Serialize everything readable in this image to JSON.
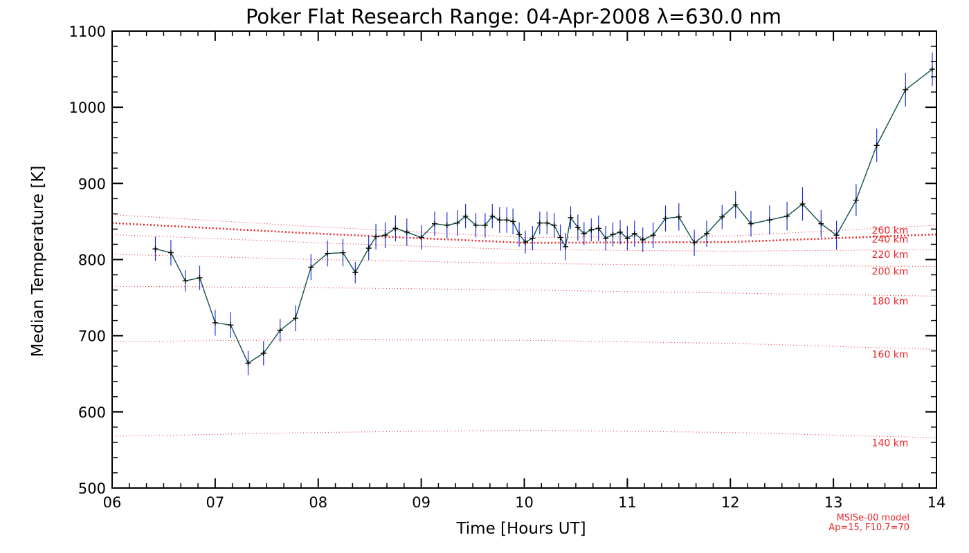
{
  "chart_data": {
    "type": "line",
    "title": "Poker Flat Research Range: 04-Apr-2008 λ=630.0 nm",
    "xlabel": "Time [Hours UT]",
    "ylabel": "Median Temperature [K]",
    "xlim": [
      6,
      14
    ],
    "ylim": [
      500,
      1100
    ],
    "xticks": [
      6,
      7,
      8,
      9,
      10,
      11,
      12,
      13,
      14
    ],
    "xtick_labels": [
      "06",
      "07",
      "08",
      "09",
      "10",
      "11",
      "12",
      "13",
      "14"
    ],
    "yticks": [
      500,
      600,
      700,
      800,
      900,
      1000,
      1100
    ],
    "ytick_labels": [
      "500",
      "600",
      "700",
      "800",
      "900",
      "1000",
      "1100"
    ],
    "grid": false,
    "series": [
      {
        "color": "#0d4f4f",
        "marker": "+",
        "errorbar_color": "#1f2fd6",
        "x": [
          6.42,
          6.57,
          6.71,
          6.85,
          7.0,
          7.15,
          7.32,
          7.47,
          7.63,
          7.78,
          7.93,
          8.09,
          8.24,
          8.36,
          8.49,
          8.56,
          8.65,
          8.75,
          8.86,
          9.0,
          9.13,
          9.25,
          9.35,
          9.43,
          9.53,
          9.62,
          9.69,
          9.76,
          9.83,
          9.89,
          9.95,
          10.01,
          10.08,
          10.15,
          10.22,
          10.29,
          10.35,
          10.4,
          10.45,
          10.52,
          10.58,
          10.65,
          10.72,
          10.79,
          10.86,
          10.93,
          11.0,
          11.07,
          11.15,
          11.25,
          11.37,
          11.5,
          11.65,
          11.77,
          11.92,
          12.05,
          12.2,
          12.38,
          12.55,
          12.7,
          12.88,
          13.03,
          13.22,
          13.42,
          13.7,
          13.96
        ],
        "y": [
          814,
          809,
          772,
          776,
          717,
          714,
          664,
          677,
          707,
          723,
          790,
          808,
          809,
          783,
          815,
          830,
          832,
          841,
          836,
          829,
          847,
          845,
          848,
          857,
          845,
          845,
          857,
          852,
          852,
          850,
          833,
          823,
          828,
          848,
          848,
          845,
          829,
          817,
          855,
          842,
          834,
          839,
          841,
          828,
          833,
          836,
          828,
          834,
          826,
          832,
          854,
          856,
          822,
          834,
          856,
          872,
          847,
          852,
          857,
          873,
          847,
          832,
          878,
          950,
          1023,
          1050
        ],
        "errors": [
          16,
          17,
          14,
          16,
          17,
          17,
          16,
          16,
          15,
          17,
          17,
          17,
          18,
          14,
          16,
          17,
          17,
          17,
          18,
          16,
          16,
          17,
          17,
          16,
          16,
          16,
          16,
          17,
          17,
          17,
          16,
          15,
          16,
          15,
          15,
          16,
          17,
          18,
          15,
          17,
          15,
          15,
          17,
          16,
          16,
          16,
          16,
          17,
          16,
          17,
          17,
          18,
          17,
          17,
          16,
          18,
          17,
          19,
          19,
          22,
          18,
          19,
          21,
          22,
          22,
          22
        ]
      }
    ],
    "model": {
      "color": "#e8262a",
      "altitudes": [
        {
          "label": "140 km",
          "x": [
            6,
            8,
            10,
            12,
            14
          ],
          "y": [
            568,
            573,
            576,
            573,
            566
          ]
        },
        {
          "label": "160 km",
          "x": [
            6,
            8,
            10,
            12,
            14
          ],
          "y": [
            692,
            695,
            694,
            690,
            682
          ]
        },
        {
          "label": "180 km",
          "x": [
            6,
            8,
            10,
            12,
            14
          ],
          "y": [
            765,
            763,
            760,
            756,
            752
          ]
        },
        {
          "label": "200 km",
          "x": [
            6,
            8,
            10,
            12,
            14
          ],
          "y": [
            807,
            800,
            795,
            792,
            791
          ]
        },
        {
          "label": "220 km",
          "x": [
            6,
            8,
            10,
            12,
            14
          ],
          "y": [
            833,
            822,
            813,
            811,
            813
          ]
        },
        {
          "label": "240 km",
          "x": [
            6,
            8,
            10,
            12,
            14
          ],
          "y": [
            848,
            834,
            822,
            823,
            833
          ]
        },
        {
          "label": "260 km",
          "x": [
            6,
            8,
            10,
            12,
            14
          ],
          "y": [
            859,
            843,
            829,
            831,
            845
          ]
        }
      ],
      "highlight_label": "240 km",
      "note_line1": "MSISe-00 model",
      "note_line2": "Ap=15, F10.7=70"
    }
  }
}
